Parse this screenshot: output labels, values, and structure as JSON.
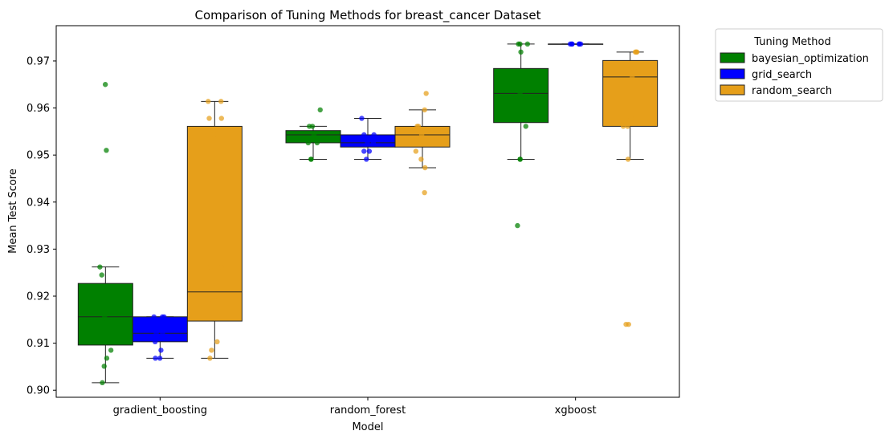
{
  "chart_data": {
    "type": "box",
    "title": "Comparison of Tuning Methods for breast_cancer Dataset",
    "xlabel": "Model",
    "ylabel": "Mean Test Score",
    "categories": [
      "gradient_boosting",
      "random_forest",
      "xgboost"
    ],
    "ylim": [
      0.8985,
      0.9775
    ],
    "yticks": [
      0.9,
      0.91,
      0.92,
      0.93,
      0.94,
      0.95,
      0.96,
      0.97
    ],
    "ytick_labels": [
      "0.90",
      "0.91",
      "0.92",
      "0.93",
      "0.94",
      "0.95",
      "0.96",
      "0.97"
    ],
    "grid": false,
    "legend": {
      "title": "Tuning Method",
      "position": "outside-right",
      "entries": [
        "bayesian_optimization",
        "grid_search",
        "random_search"
      ]
    },
    "series": [
      {
        "name": "bayesian_optimization",
        "color": "#008000",
        "boxes": [
          {
            "whisker_low": 0.9016,
            "q1": 0.9096,
            "median": 0.9156,
            "q3": 0.9227,
            "whisker_high": 0.9262,
            "points": [
              0.965,
              0.951,
              0.9262,
              0.9245,
              0.9156,
              0.9143,
              0.9115,
              0.9085,
              0.9068,
              0.9051,
              0.9016
            ]
          },
          {
            "whisker_low": 0.9491,
            "q1": 0.9526,
            "median": 0.9543,
            "q3": 0.9552,
            "whisker_high": 0.9561,
            "points": [
              0.9596,
              0.9561,
              0.9561,
              0.9543,
              0.9534,
              0.9526,
              0.9526,
              0.9491,
              0.9491
            ]
          },
          {
            "whisker_low": 0.9491,
            "q1": 0.9569,
            "median": 0.9631,
            "q3": 0.9684,
            "whisker_high": 0.9736,
            "points": [
              0.9736,
              0.9736,
              0.9736,
              0.9719,
              0.9631,
              0.9561,
              0.9491,
              0.9491,
              0.935
            ]
          }
        ]
      },
      {
        "name": "grid_search",
        "color": "#0000ff",
        "boxes": [
          {
            "whisker_low": 0.9068,
            "q1": 0.9103,
            "median": 0.9121,
            "q3": 0.9156,
            "whisker_high": 0.9156,
            "points": [
              0.9156,
              0.9156,
              0.9156,
              0.9138,
              0.9121,
              0.9121,
              0.9103,
              0.9085,
              0.9068,
              0.9068
            ]
          },
          {
            "whisker_low": 0.9491,
            "q1": 0.9517,
            "median": 0.9526,
            "q3": 0.9543,
            "whisker_high": 0.9578,
            "points": [
              0.9578,
              0.9543,
              0.9543,
              0.9526,
              0.9526,
              0.9508,
              0.9508,
              0.9491
            ]
          },
          {
            "whisker_low": 0.9736,
            "q1": 0.9736,
            "median": 0.9736,
            "q3": 0.9736,
            "whisker_high": 0.9736,
            "points": [
              0.9736,
              0.9736,
              0.9736,
              0.9736,
              0.9736,
              0.9736
            ]
          }
        ]
      },
      {
        "name": "random_search",
        "color": "#e69f1a",
        "boxes": [
          {
            "whisker_low": 0.9068,
            "q1": 0.9147,
            "median": 0.9209,
            "q3": 0.9561,
            "whisker_high": 0.9614,
            "points": [
              0.9614,
              0.9614,
              0.9578,
              0.9578,
              0.9543,
              0.9262,
              0.9262,
              0.9191,
              0.9191,
              0.9103,
              0.9085,
              0.9068
            ]
          },
          {
            "whisker_low": 0.9473,
            "q1": 0.9517,
            "median": 0.9543,
            "q3": 0.9561,
            "whisker_high": 0.9596,
            "points": [
              0.9631,
              0.9596,
              0.9561,
              0.9561,
              0.9543,
              0.9526,
              0.9508,
              0.9491,
              0.9473,
              0.942
            ]
          },
          {
            "whisker_low": 0.9491,
            "q1": 0.9561,
            "median": 0.9666,
            "q3": 0.9701,
            "whisker_high": 0.9719,
            "points": [
              0.9719,
              0.9719,
              0.9719,
              0.9684,
              0.9666,
              0.9578,
              0.9561,
              0.9561,
              0.9491,
              0.914,
              0.914
            ]
          }
        ]
      }
    ]
  }
}
